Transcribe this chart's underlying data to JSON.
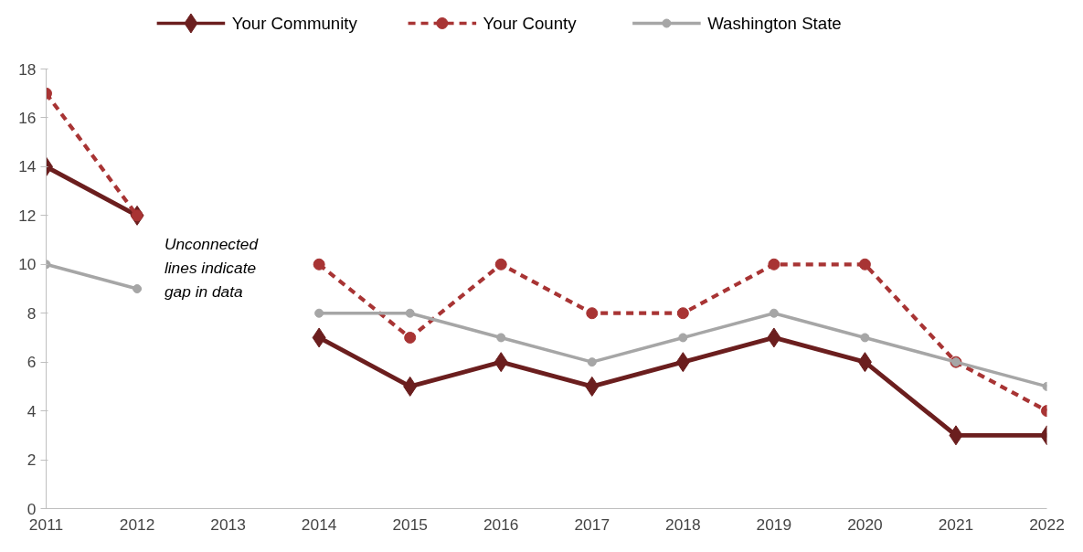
{
  "chart_data": {
    "type": "line",
    "categories": [
      "2011",
      "2012",
      "2013",
      "2014",
      "2015",
      "2016",
      "2017",
      "2018",
      "2019",
      "2020",
      "2021",
      "2022"
    ],
    "series": [
      {
        "name": "Your Community",
        "color": "#6b1e1e",
        "marker": "diamond",
        "line_style": "solid",
        "values": [
          14,
          12,
          null,
          7,
          5,
          6,
          5,
          6,
          7,
          6,
          3,
          3
        ]
      },
      {
        "name": "Your County",
        "color": "#a83434",
        "marker": "circle",
        "line_style": "dashed",
        "values": [
          17,
          12,
          null,
          10,
          7,
          10,
          8,
          8,
          10,
          10,
          6,
          4
        ]
      },
      {
        "name": "Washington State",
        "color": "#a6a6a6",
        "marker": "circle",
        "line_style": "solid",
        "values": [
          10,
          9,
          null,
          8,
          8,
          7,
          6,
          7,
          8,
          7,
          6,
          5
        ]
      }
    ],
    "ylim": [
      0,
      18
    ],
    "yticks": [
      0,
      2,
      4,
      6,
      8,
      10,
      12,
      14,
      16,
      18
    ],
    "grid": false,
    "legend": "top",
    "annotations": [
      "Unconnected\nlines indicate\ngap in data"
    ]
  }
}
